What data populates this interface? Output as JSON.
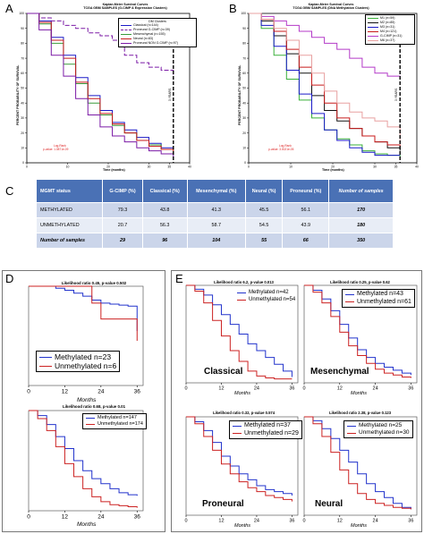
{
  "panels": {
    "A": {
      "letter": "A",
      "title": [
        "Kaplan-Meier Survival Curves",
        "TCGA GBM SAMPLES (G-CIMP & Expression Clusters)"
      ],
      "ylabel": "PERCENT PROBABILITY OF SURVIVAL",
      "xlabel": "Time (months)",
      "legend_title": "DM Clusters",
      "legend": [
        {
          "label": "Classical (n=144)",
          "color": "#1a1ac8",
          "dash": false
        },
        {
          "label": "Proneural G-CIMP (n=39)",
          "color": "#7b1aa6",
          "dash": true
        },
        {
          "label": "Mesenchymal (n=155)",
          "color": "#3a9a3a",
          "dash": false
        },
        {
          "label": "Neural (n=83)",
          "color": "#c81a1a",
          "dash": false
        },
        {
          "label": "Proneural NON G-CIMP (n=97)",
          "color": "#7b1aa6",
          "dash": false
        }
      ],
      "marker": "3 YEARS",
      "logrank": [
        "Log-Rank",
        "p-value: 1.0871e-09"
      ],
      "yticks": [
        "100",
        "90",
        "80",
        "70",
        "60",
        "50",
        "40",
        "30",
        "20",
        "10",
        "0"
      ],
      "xticks": [
        "0",
        "10",
        "20",
        "30",
        "35",
        "40"
      ],
      "chart_data": {
        "type": "line",
        "x": [
          0,
          3,
          6,
          9,
          12,
          15,
          18,
          21,
          24,
          27,
          30,
          33,
          36
        ],
        "series": [
          {
            "name": "Classical (n=144)",
            "values": [
              100,
              95,
              84,
              72,
              57,
              45,
              35,
              27,
              22,
              17,
              13,
              10,
              9
            ]
          },
          {
            "name": "Proneural G-CIMP (n=39)",
            "values": [
              100,
              97,
              95,
              92,
              90,
              87,
              85,
              82,
              72,
              67,
              64,
              62,
              59
            ]
          },
          {
            "name": "Mesenchymal (n=155)",
            "values": [
              100,
              93,
              80,
              66,
              53,
              40,
              32,
              25,
              20,
              15,
              12,
              9,
              7
            ]
          },
          {
            "name": "Neural (n=83)",
            "values": [
              100,
              94,
              82,
              70,
              54,
              43,
              33,
              26,
              20,
              15,
              11,
              9,
              7
            ]
          },
          {
            "name": "Proneural NON G-CIMP (n=97)",
            "values": [
              100,
              89,
              72,
              58,
              43,
              32,
              24,
              18,
              14,
              10,
              8,
              6,
              4
            ]
          }
        ],
        "ylim": [
          0,
          100
        ],
        "xlim": [
          0,
          40
        ]
      }
    },
    "B": {
      "letter": "B",
      "title": [
        "Kaplan-Meier Survival Curves",
        "TCGA GBM SAMPLES (DNA Methylation Clusters)"
      ],
      "ylabel": "PERCENT PROBABILITY OF SURVIVAL",
      "xlabel": "Time (months)",
      "legend": [
        {
          "label": "M1 (n=59)",
          "color": "#3ab03a"
        },
        {
          "label": "M2 (n=85)",
          "color": "#111111"
        },
        {
          "label": "M3 (n=31)",
          "color": "#1a1ac8"
        },
        {
          "label": "M4 (n=121)",
          "color": "#c81a1a"
        },
        {
          "label": "G-CIMP (n=31)",
          "color": "#b43ac8"
        },
        {
          "label": "M6 (n=37)",
          "color": "#e8a0a0"
        }
      ],
      "marker": "3 YEARS",
      "logrank": [
        "Log-Rank",
        "p-value: 3.0021e-05"
      ],
      "yticks": [
        "100",
        "90",
        "80",
        "70",
        "60",
        "50",
        "40",
        "30",
        "20",
        "10",
        "0"
      ],
      "xticks": [
        "0",
        "10",
        "20",
        "30",
        "35",
        "40"
      ],
      "chart_data": {
        "type": "line",
        "x": [
          0,
          3,
          6,
          9,
          12,
          15,
          18,
          21,
          24,
          27,
          30,
          33,
          36
        ],
        "series": [
          {
            "name": "M1 (n=59)",
            "values": [
              100,
              90,
              72,
              56,
              42,
              30,
              22,
              16,
              12,
              8,
              6,
              5,
              4
            ]
          },
          {
            "name": "M2 (n=85)",
            "values": [
              100,
              95,
              85,
              73,
              60,
              45,
              35,
              28,
              23,
              18,
              14,
              10,
              8
            ]
          },
          {
            "name": "M3 (n=31)",
            "values": [
              100,
              92,
              78,
              62,
              46,
              33,
              22,
              15,
              10,
              7,
              5,
              5,
              5
            ]
          },
          {
            "name": "M4 (n=121)",
            "values": [
              100,
              96,
              88,
              76,
              64,
              52,
              40,
              30,
              23,
              18,
              14,
              12,
              10
            ]
          },
          {
            "name": "G-CIMP (n=31)",
            "values": [
              100,
              98,
              95,
              92,
              88,
              84,
              80,
              76,
              70,
              64,
              60,
              58,
              56
            ]
          },
          {
            "name": "M6 (n=37)",
            "values": [
              100,
              96,
              90,
              82,
              72,
              60,
              48,
              40,
              34,
              30,
              28,
              24,
              12
            ]
          }
        ],
        "ylim": [
          0,
          100
        ],
        "xlim": [
          0,
          40
        ]
      }
    },
    "C": {
      "letter": "C",
      "headers": [
        "MGMT status",
        "G-CIMP (%)",
        "Classical (%)",
        "Mesenchymal (%)",
        "Neural (%)",
        "Proneural (%)",
        "Number of samples"
      ],
      "rows": [
        [
          "METHYLATED",
          "79.3",
          "43.8",
          "41.3",
          "45.5",
          "56.1",
          "170"
        ],
        [
          "UNMETHYLATED",
          "20.7",
          "56.3",
          "58.7",
          "54.5",
          "43.9",
          "180"
        ],
        [
          "Number of samples",
          "29",
          "96",
          "104",
          "55",
          "66",
          "350"
        ]
      ],
      "chart_data": {
        "type": "table",
        "columns": [
          "MGMT status",
          "G-CIMP (%)",
          "Classical (%)",
          "Mesenchymal (%)",
          "Neural (%)",
          "Proneural (%)",
          "Number of samples"
        ],
        "rows": [
          [
            "METHYLATED",
            79.3,
            43.8,
            41.3,
            45.5,
            56.1,
            170
          ],
          [
            "UNMETHYLATED",
            20.7,
            56.3,
            58.7,
            54.5,
            43.9,
            180
          ],
          [
            "Number of samples",
            29,
            96,
            104,
            55,
            66,
            350
          ]
        ]
      }
    },
    "D": {
      "letter": "D",
      "top": {
        "title": "Likelihood ratio 0.45, p-value 0.502",
        "legend": [
          {
            "label": "Methylated n=23",
            "color": "#2233cc"
          },
          {
            "label": "Unmethylated n=6",
            "color": "#cc2222"
          }
        ],
        "xticks": [
          "0",
          "12",
          "24",
          "36"
        ],
        "xlabel": "Months",
        "chart_data": {
          "type": "line",
          "x": [
            0,
            3,
            6,
            9,
            12,
            15,
            18,
            21,
            24,
            27,
            30,
            33,
            36
          ],
          "series": [
            {
              "name": "Methylated n=23",
              "values": [
                1.0,
                1.0,
                1.0,
                0.98,
                0.96,
                0.93,
                0.9,
                0.86,
                0.83,
                0.82,
                0.81,
                0.8,
                0.55
              ]
            },
            {
              "name": "Unmethylated n=6",
              "values": [
                1.0,
                1.0,
                1.0,
                1.0,
                1.0,
                1.0,
                1.0,
                0.83,
                0.67,
                0.67,
                0.67,
                0.67,
                0.45
              ]
            }
          ],
          "ylim": [
            0,
            1
          ],
          "xlim": [
            0,
            38
          ]
        }
      },
      "bottom": {
        "title": "Likelihood ratio 0.68, p-value 0.01",
        "legend": [
          {
            "label": "Methylated n=147",
            "color": "#2233cc"
          },
          {
            "label": "Unmethylated n=174",
            "color": "#cc2222"
          }
        ],
        "xticks": [
          "0",
          "12",
          "24",
          "36"
        ],
        "xlabel": "Months",
        "chart_data": {
          "type": "line",
          "x": [
            0,
            3,
            6,
            9,
            12,
            15,
            18,
            21,
            24,
            27,
            30,
            33,
            36
          ],
          "series": [
            {
              "name": "Methylated n=147",
              "values": [
                1.0,
                0.95,
                0.86,
                0.74,
                0.62,
                0.5,
                0.4,
                0.32,
                0.27,
                0.22,
                0.18,
                0.16,
                0.15
              ]
            },
            {
              "name": "Unmethylated n=174",
              "values": [
                1.0,
                0.92,
                0.8,
                0.64,
                0.47,
                0.34,
                0.22,
                0.14,
                0.09,
                0.06,
                0.05,
                0.04,
                0.03
              ]
            }
          ],
          "ylim": [
            0,
            1
          ],
          "xlim": [
            0,
            38
          ]
        }
      }
    },
    "E": {
      "letter": "E",
      "subplots": [
        {
          "title": "Likelihood ratio 6.2, p-value 0.013",
          "category": "Classical",
          "legend": [
            {
              "label": "Methylated n=42",
              "color": "#2233cc"
            },
            {
              "label": "Unmethylated n=54",
              "color": "#cc2222"
            }
          ],
          "xticks": [
            "0",
            "12",
            "24",
            "36"
          ],
          "xlabel": "Months",
          "chart_data": {
            "type": "line",
            "x": [
              0,
              3,
              6,
              9,
              12,
              15,
              18,
              21,
              24,
              27,
              30,
              33,
              36
            ],
            "series": [
              {
                "name": "Methylated n=42",
                "values": [
                  1.0,
                  0.96,
                  0.9,
                  0.8,
                  0.7,
                  0.6,
                  0.5,
                  0.4,
                  0.33,
                  0.26,
                  0.19,
                  0.12,
                  0.06
                ]
              },
              {
                "name": "Unmethylated n=54",
                "values": [
                  1.0,
                  0.94,
                  0.82,
                  0.64,
                  0.48,
                  0.33,
                  0.22,
                  0.12,
                  0.07,
                  0.05,
                  0.04,
                  0.04,
                  0.04
                ]
              }
            ],
            "ylim": [
              0,
              1
            ],
            "xlim": [
              0,
              38
            ]
          }
        },
        {
          "title": "Likelihood ratio 0.25, p-value 0.62",
          "category": "Mesenchymal",
          "legend": [
            {
              "label": "Methylated n=43",
              "color": "#2233cc"
            },
            {
              "label": "Unmethylated n=61",
              "color": "#cc2222"
            }
          ],
          "xticks": [
            "0",
            "12",
            "24",
            "36"
          ],
          "xlabel": "Months",
          "chart_data": {
            "type": "line",
            "x": [
              0,
              3,
              6,
              9,
              12,
              15,
              18,
              21,
              24,
              27,
              30,
              33,
              36
            ],
            "series": [
              {
                "name": "Methylated n=43",
                "values": [
                  1.0,
                  0.95,
                  0.86,
                  0.74,
                  0.6,
                  0.46,
                  0.34,
                  0.26,
                  0.2,
                  0.16,
                  0.13,
                  0.1,
                  0.08
                ]
              },
              {
                "name": "Unmethylated n=61",
                "values": [
                  1.0,
                  0.93,
                  0.82,
                  0.68,
                  0.52,
                  0.38,
                  0.28,
                  0.2,
                  0.14,
                  0.1,
                  0.08,
                  0.06,
                  0.05
                ]
              }
            ],
            "ylim": [
              0,
              1
            ],
            "xlim": [
              0,
              38
            ]
          }
        },
        {
          "title": "Likelihood ratio 0.32, p-value 0.574",
          "category": "Proneural",
          "legend": [
            {
              "label": "Methylated n=37",
              "color": "#2233cc"
            },
            {
              "label": "Unmethylated n=29",
              "color": "#cc2222"
            }
          ],
          "xticks": [
            "0",
            "12",
            "24",
            "36"
          ],
          "xlabel": "Months",
          "chart_data": {
            "type": "line",
            "x": [
              0,
              3,
              6,
              9,
              12,
              15,
              18,
              21,
              24,
              27,
              30,
              33,
              36
            ],
            "series": [
              {
                "name": "Methylated n=37",
                "values": [
                  1.0,
                  0.95,
                  0.86,
                  0.74,
                  0.6,
                  0.5,
                  0.42,
                  0.36,
                  0.3,
                  0.26,
                  0.24,
                  0.22,
                  0.2
                ]
              },
              {
                "name": "Unmethylated n=29",
                "values": [
                  1.0,
                  0.93,
                  0.8,
                  0.66,
                  0.52,
                  0.42,
                  0.34,
                  0.28,
                  0.24,
                  0.2,
                  0.18,
                  0.16,
                  0.14
                ]
              }
            ],
            "ylim": [
              0,
              1
            ],
            "xlim": [
              0,
              38
            ]
          }
        },
        {
          "title": "Likelihood ratio 2.38, p-value 0.123",
          "category": "Neural",
          "legend": [
            {
              "label": "Methylated n=25",
              "color": "#2233cc"
            },
            {
              "label": "Unmethylated n=30",
              "color": "#cc2222"
            }
          ],
          "xticks": [
            "0",
            "12",
            "24",
            "36"
          ],
          "xlabel": "Months",
          "chart_data": {
            "type": "line",
            "x": [
              0,
              3,
              6,
              9,
              12,
              15,
              18,
              21,
              24,
              27,
              30,
              33,
              36
            ],
            "series": [
              {
                "name": "Methylated n=25",
                "values": [
                  1.0,
                  0.96,
                  0.88,
                  0.78,
                  0.66,
                  0.54,
                  0.42,
                  0.32,
                  0.24,
                  0.18,
                  0.12,
                  0.08,
                  0.06
                ]
              },
              {
                "name": "Unmethylated n=30",
                "values": [
                  1.0,
                  0.93,
                  0.8,
                  0.64,
                  0.46,
                  0.32,
                  0.22,
                  0.16,
                  0.12,
                  0.1,
                  0.08,
                  0.07,
                  0.06
                ]
              }
            ],
            "ylim": [
              0,
              1
            ],
            "xlim": [
              0,
              38
            ]
          }
        }
      ]
    }
  }
}
